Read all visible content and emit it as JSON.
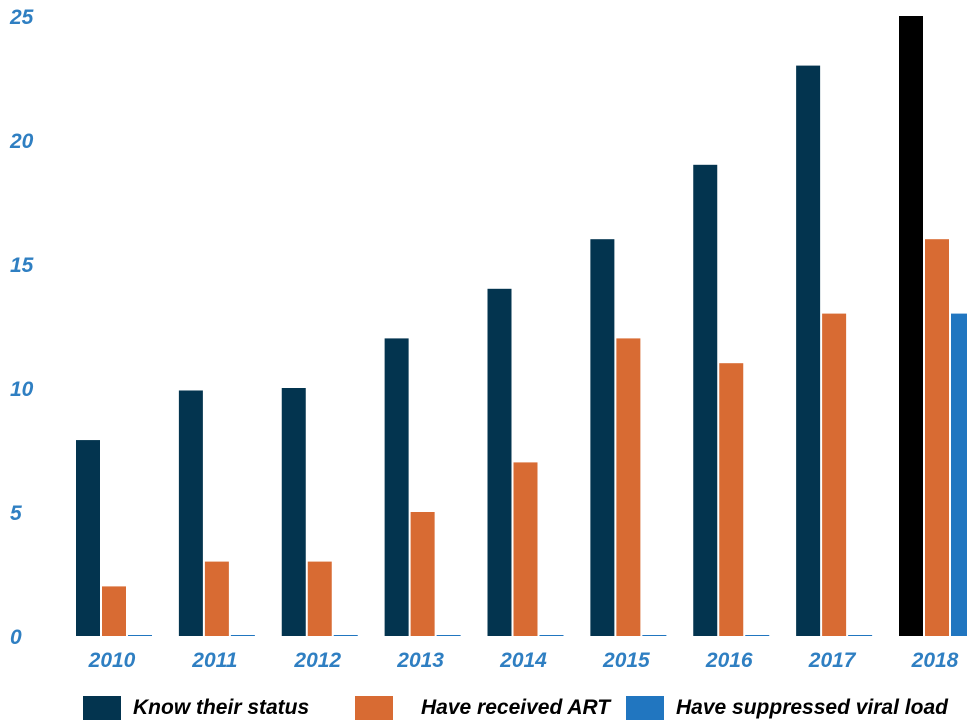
{
  "chart_data": {
    "type": "bar",
    "categories": [
      "2010",
      "2011",
      "2012",
      "2013",
      "2014",
      "2015",
      "2016",
      "2017",
      "2018"
    ],
    "series": [
      {
        "name": "Know their status",
        "color": "#03344f",
        "values": [
          7.9,
          9.9,
          10.0,
          12.0,
          14.0,
          16.0,
          19.0,
          23.0,
          25.0
        ]
      },
      {
        "name": "Have received ART",
        "color": "#d86b33",
        "values": [
          2.0,
          3.0,
          3.0,
          5.0,
          7.0,
          12.0,
          11.0,
          13.0,
          16.0
        ]
      },
      {
        "name": "Have suppressed viral load",
        "color": "#2176c0",
        "values": [
          0,
          0,
          0,
          0,
          0,
          0,
          0,
          0,
          13.0
        ]
      }
    ],
    "highlight": {
      "category": "2018",
      "series": "Know their status",
      "color": "#000000"
    },
    "yticks": [
      "0",
      "5",
      "10",
      "15",
      "20",
      "25"
    ],
    "ylim": [
      0,
      25
    ],
    "grid": false,
    "legend_position": "bottom"
  }
}
